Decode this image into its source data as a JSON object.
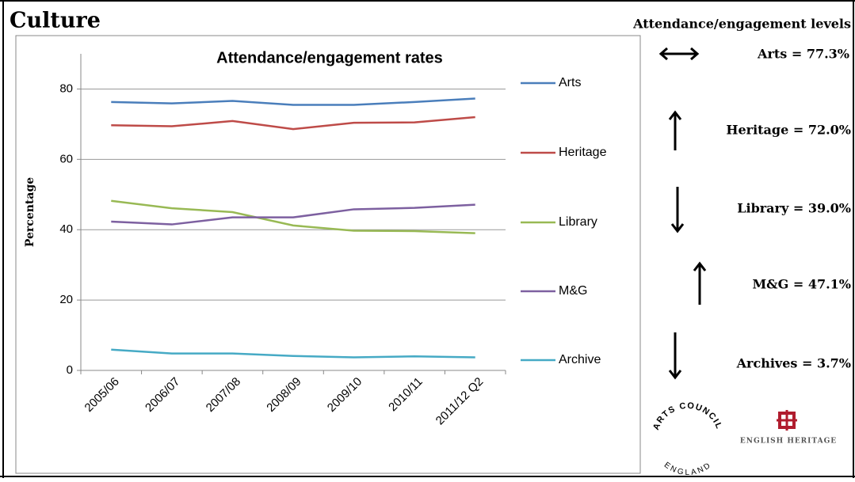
{
  "header": "Culture",
  "chart_data": {
    "type": "line",
    "title": "Attendance/engagement rates",
    "y_label": "Percentage",
    "categories": [
      "2005/06",
      "2006/07",
      "2007/08",
      "2008/09",
      "2009/10",
      "2010/11",
      "2011/12 Q2"
    ],
    "series": [
      {
        "name": "Arts",
        "color": "#4a7ebb",
        "values": [
          76.3,
          75.9,
          76.6,
          75.5,
          75.5,
          76.3,
          77.3
        ]
      },
      {
        "name": "Heritage",
        "color": "#be4b48",
        "values": [
          69.7,
          69.4,
          70.9,
          68.6,
          70.4,
          70.5,
          72.0
        ]
      },
      {
        "name": "Library",
        "color": "#98b954",
        "values": [
          48.2,
          46.1,
          45.0,
          41.2,
          39.7,
          39.6,
          39.0
        ]
      },
      {
        "name": "M&G",
        "color": "#7d60a0",
        "values": [
          42.3,
          41.5,
          43.5,
          43.5,
          45.8,
          46.2,
          47.1
        ]
      },
      {
        "name": "Archive",
        "color": "#46aac5",
        "values": [
          5.9,
          4.8,
          4.8,
          4.1,
          3.7,
          4.0,
          3.7
        ]
      }
    ],
    "ylim": [
      0,
      90
    ],
    "yticks": [
      0,
      20,
      40,
      60,
      80
    ],
    "grid": true,
    "legend": "right"
  },
  "side_panel": {
    "title": "Attendance/engagement levels",
    "items": [
      "Arts = 77.3%",
      "Heritage = 72.0%",
      "Library = 39.0%",
      "M&G = 47.1%",
      "Archives = 3.7%"
    ]
  },
  "logos": {
    "arts_council_top": "ARTS COUNCIL",
    "arts_council_bottom": "ENGLAND",
    "english_heritage": "ENGLISH HERITAGE"
  }
}
